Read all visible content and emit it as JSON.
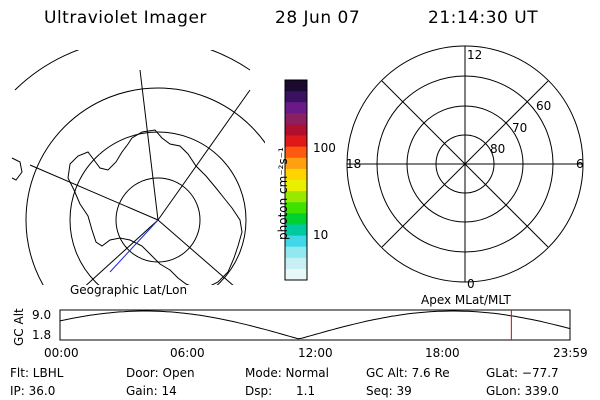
{
  "header": {
    "instrument": "Ultraviolet Imager",
    "date": "28 Jun 07",
    "time": "21:14:30 UT"
  },
  "colorbar": {
    "label": "photon cm⁻²s⁻¹",
    "ticks": [
      "100",
      "10"
    ],
    "colors": [
      "#1a0a30",
      "#3a1060",
      "#6a1a88",
      "#8a2060",
      "#b01030",
      "#e01818",
      "#ff5a10",
      "#ffa010",
      "#ffd400",
      "#e8f000",
      "#9ae800",
      "#40e000",
      "#00d030",
      "#00c8a0",
      "#40d8e8",
      "#90e8f0",
      "#c8f0f4",
      "#e8f8f8"
    ]
  },
  "geo_panel": {
    "label": "Geographic Lat/Lon"
  },
  "apex_panel": {
    "label": "Apex MLat/MLT",
    "mlt_labels": [
      "12",
      "18",
      "6",
      "0"
    ],
    "lat_labels": [
      "60",
      "70",
      "80"
    ]
  },
  "timeline": {
    "ylabel": "GC Alt",
    "ymax": "9.0",
    "ymin": "1.8",
    "xticks": [
      "00:00",
      "06:00",
      "12:00",
      "18:00",
      "23:59"
    ],
    "marker_color": "#e00000",
    "marker_time_hours": 21.24,
    "curve_range": [
      1.8,
      9.0
    ]
  },
  "info": {
    "filter": "Flt: LBHL",
    "ip": "IP: 36.0",
    "door": "Door: Open",
    "gain": "Gain: 14",
    "mode": "Mode: Normal",
    "dsp_label": "Dsp:",
    "dsp_value": "1.1",
    "gc_alt": "GC Alt: 7.6 Re",
    "seq": "Seq: 39",
    "glat": "GLat: −77.7",
    "glon": "GLon: 339.0"
  }
}
